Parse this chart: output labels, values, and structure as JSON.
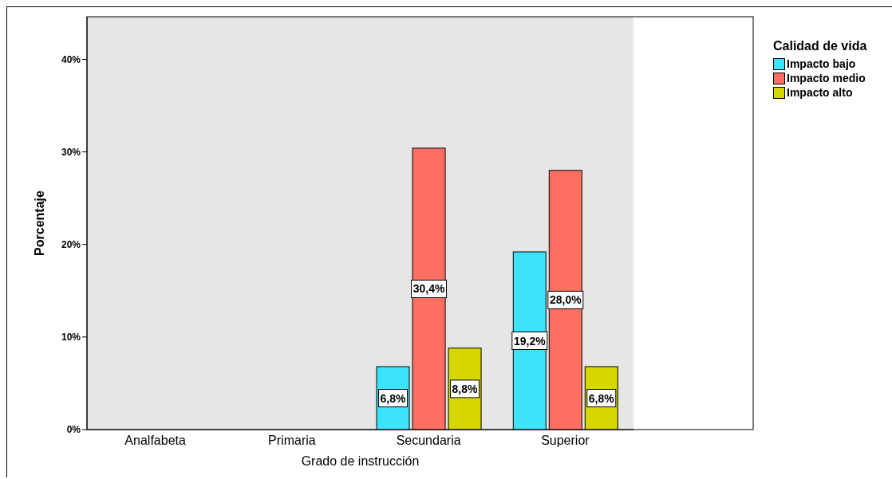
{
  "chart_data": {
    "type": "bar",
    "xlabel": "Grado de instrucción",
    "ylabel": "Porcentaje",
    "legend_title": "Calidad de vida",
    "legend": "top right",
    "categories": [
      "Analfabeta",
      "Primaria",
      "Secundaria",
      "Superior"
    ],
    "series": [
      {
        "name": "Impacto bajo",
        "color": "#3de3fb",
        "values": [
          0,
          0,
          6.8,
          19.2
        ],
        "value_labels": [
          null,
          null,
          "6,8%",
          "19,2%"
        ]
      },
      {
        "name": "Impacto medio",
        "color": "#ff6f61",
        "values": [
          0,
          0,
          30.4,
          28.0
        ],
        "value_labels": [
          null,
          null,
          "30,4%",
          "28,0%"
        ]
      },
      {
        "name": "Impacto alto",
        "color": "#d6d600",
        "values": [
          0,
          0,
          8.8,
          6.8
        ],
        "value_labels": [
          null,
          null,
          "8,8%",
          "6,8%"
        ]
      }
    ],
    "ylim": [
      0,
      44.6
    ],
    "yticks": [
      {
        "value": 0,
        "label": "0%"
      },
      {
        "value": 10,
        "label": "10%"
      },
      {
        "value": 20,
        "label": "20%"
      },
      {
        "value": 30,
        "label": "30%"
      },
      {
        "value": 40,
        "label": "40%"
      }
    ]
  }
}
